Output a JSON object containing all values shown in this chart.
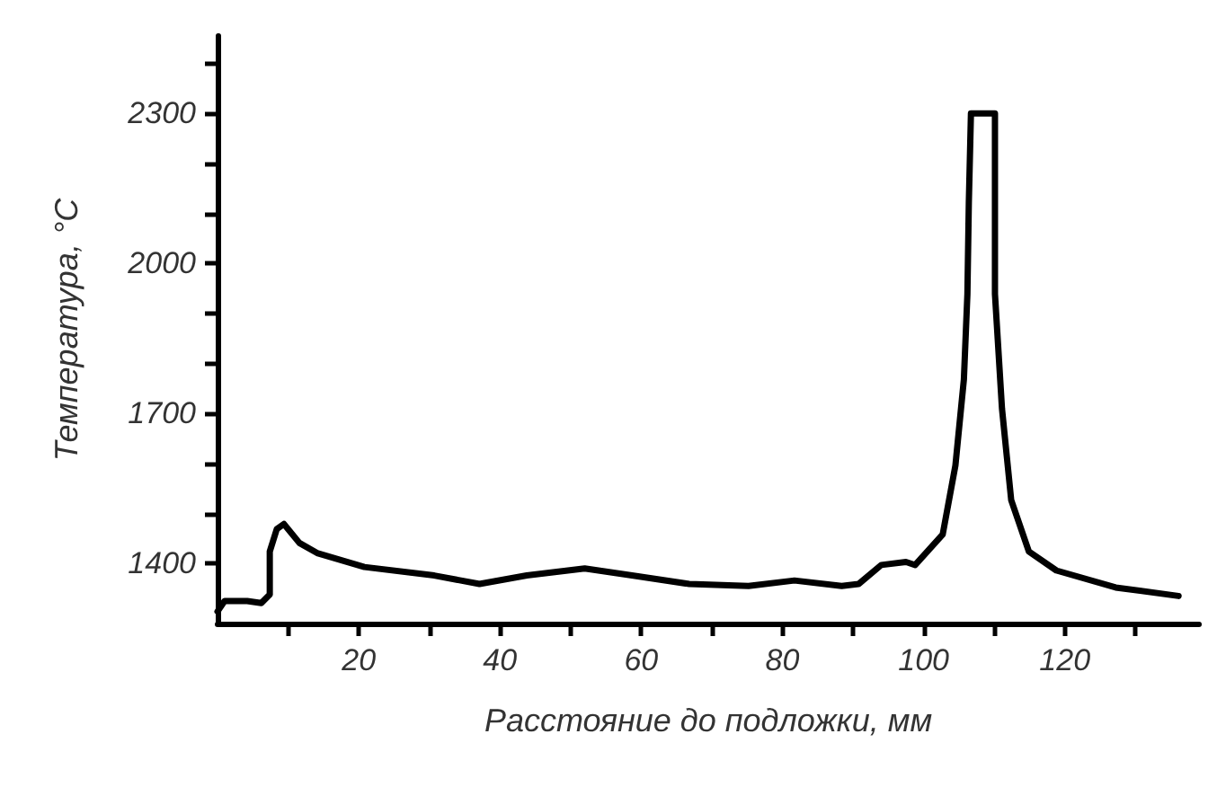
{
  "chart_data": {
    "type": "line",
    "xlabel": "Расстояние до подложки, мм",
    "ylabel": "Температура, °С",
    "x": [
      0,
      1,
      4.2,
      6.2,
      7.4,
      7.4,
      8.4,
      9.4,
      11.6,
      14.1,
      20.8,
      30.7,
      37.1,
      43.8,
      52,
      58.7,
      66.8,
      75.2,
      81.7,
      88.4,
      90.8,
      94,
      97.5,
      98.8,
      102.7,
      104.5,
      105.7,
      106.2,
      106.4,
      106.7,
      110.1,
      110.1,
      111.1,
      112.4,
      114.9,
      118.8,
      127.2,
      136.1
    ],
    "series": [
      {
        "color": "#000000",
        "values": [
          1304,
          1325,
          1325,
          1321,
          1338,
          1424,
          1469,
          1479,
          1441,
          1421,
          1393,
          1376,
          1359,
          1376,
          1390,
          1376,
          1359,
          1355,
          1366,
          1355,
          1359,
          1397,
          1403,
          1397,
          1458,
          1596,
          1768,
          1939,
          2122,
          2300,
          2300,
          1939,
          1709,
          1527,
          1424,
          1386,
          1352,
          1335
        ]
      }
    ],
    "xlim": [
      0,
      139
    ],
    "xticks": [
      {
        "value": 10,
        "label": null
      },
      20,
      {
        "value": 30,
        "label": null
      },
      40,
      {
        "value": 50,
        "label": null
      },
      60,
      {
        "value": 70,
        "label": null
      },
      80,
      {
        "value": 90,
        "label": null
      },
      100,
      {
        "value": 110,
        "label": null
      },
      120,
      {
        "value": 130,
        "label": null
      }
    ],
    "ylim": [
      1280,
      2455
    ],
    "yticks": [
      1400,
      {
        "value": 1500,
        "label": null
      },
      {
        "value": 1600,
        "label": null
      },
      1700,
      {
        "value": 1800,
        "label": null
      },
      {
        "value": 1900,
        "label": null
      },
      2000,
      {
        "value": 2100,
        "label": null
      },
      {
        "value": 2200,
        "label": null
      },
      2300,
      {
        "value": 2400,
        "label": null
      }
    ],
    "grid": false,
    "marker": "none",
    "line_style": "solid"
  }
}
